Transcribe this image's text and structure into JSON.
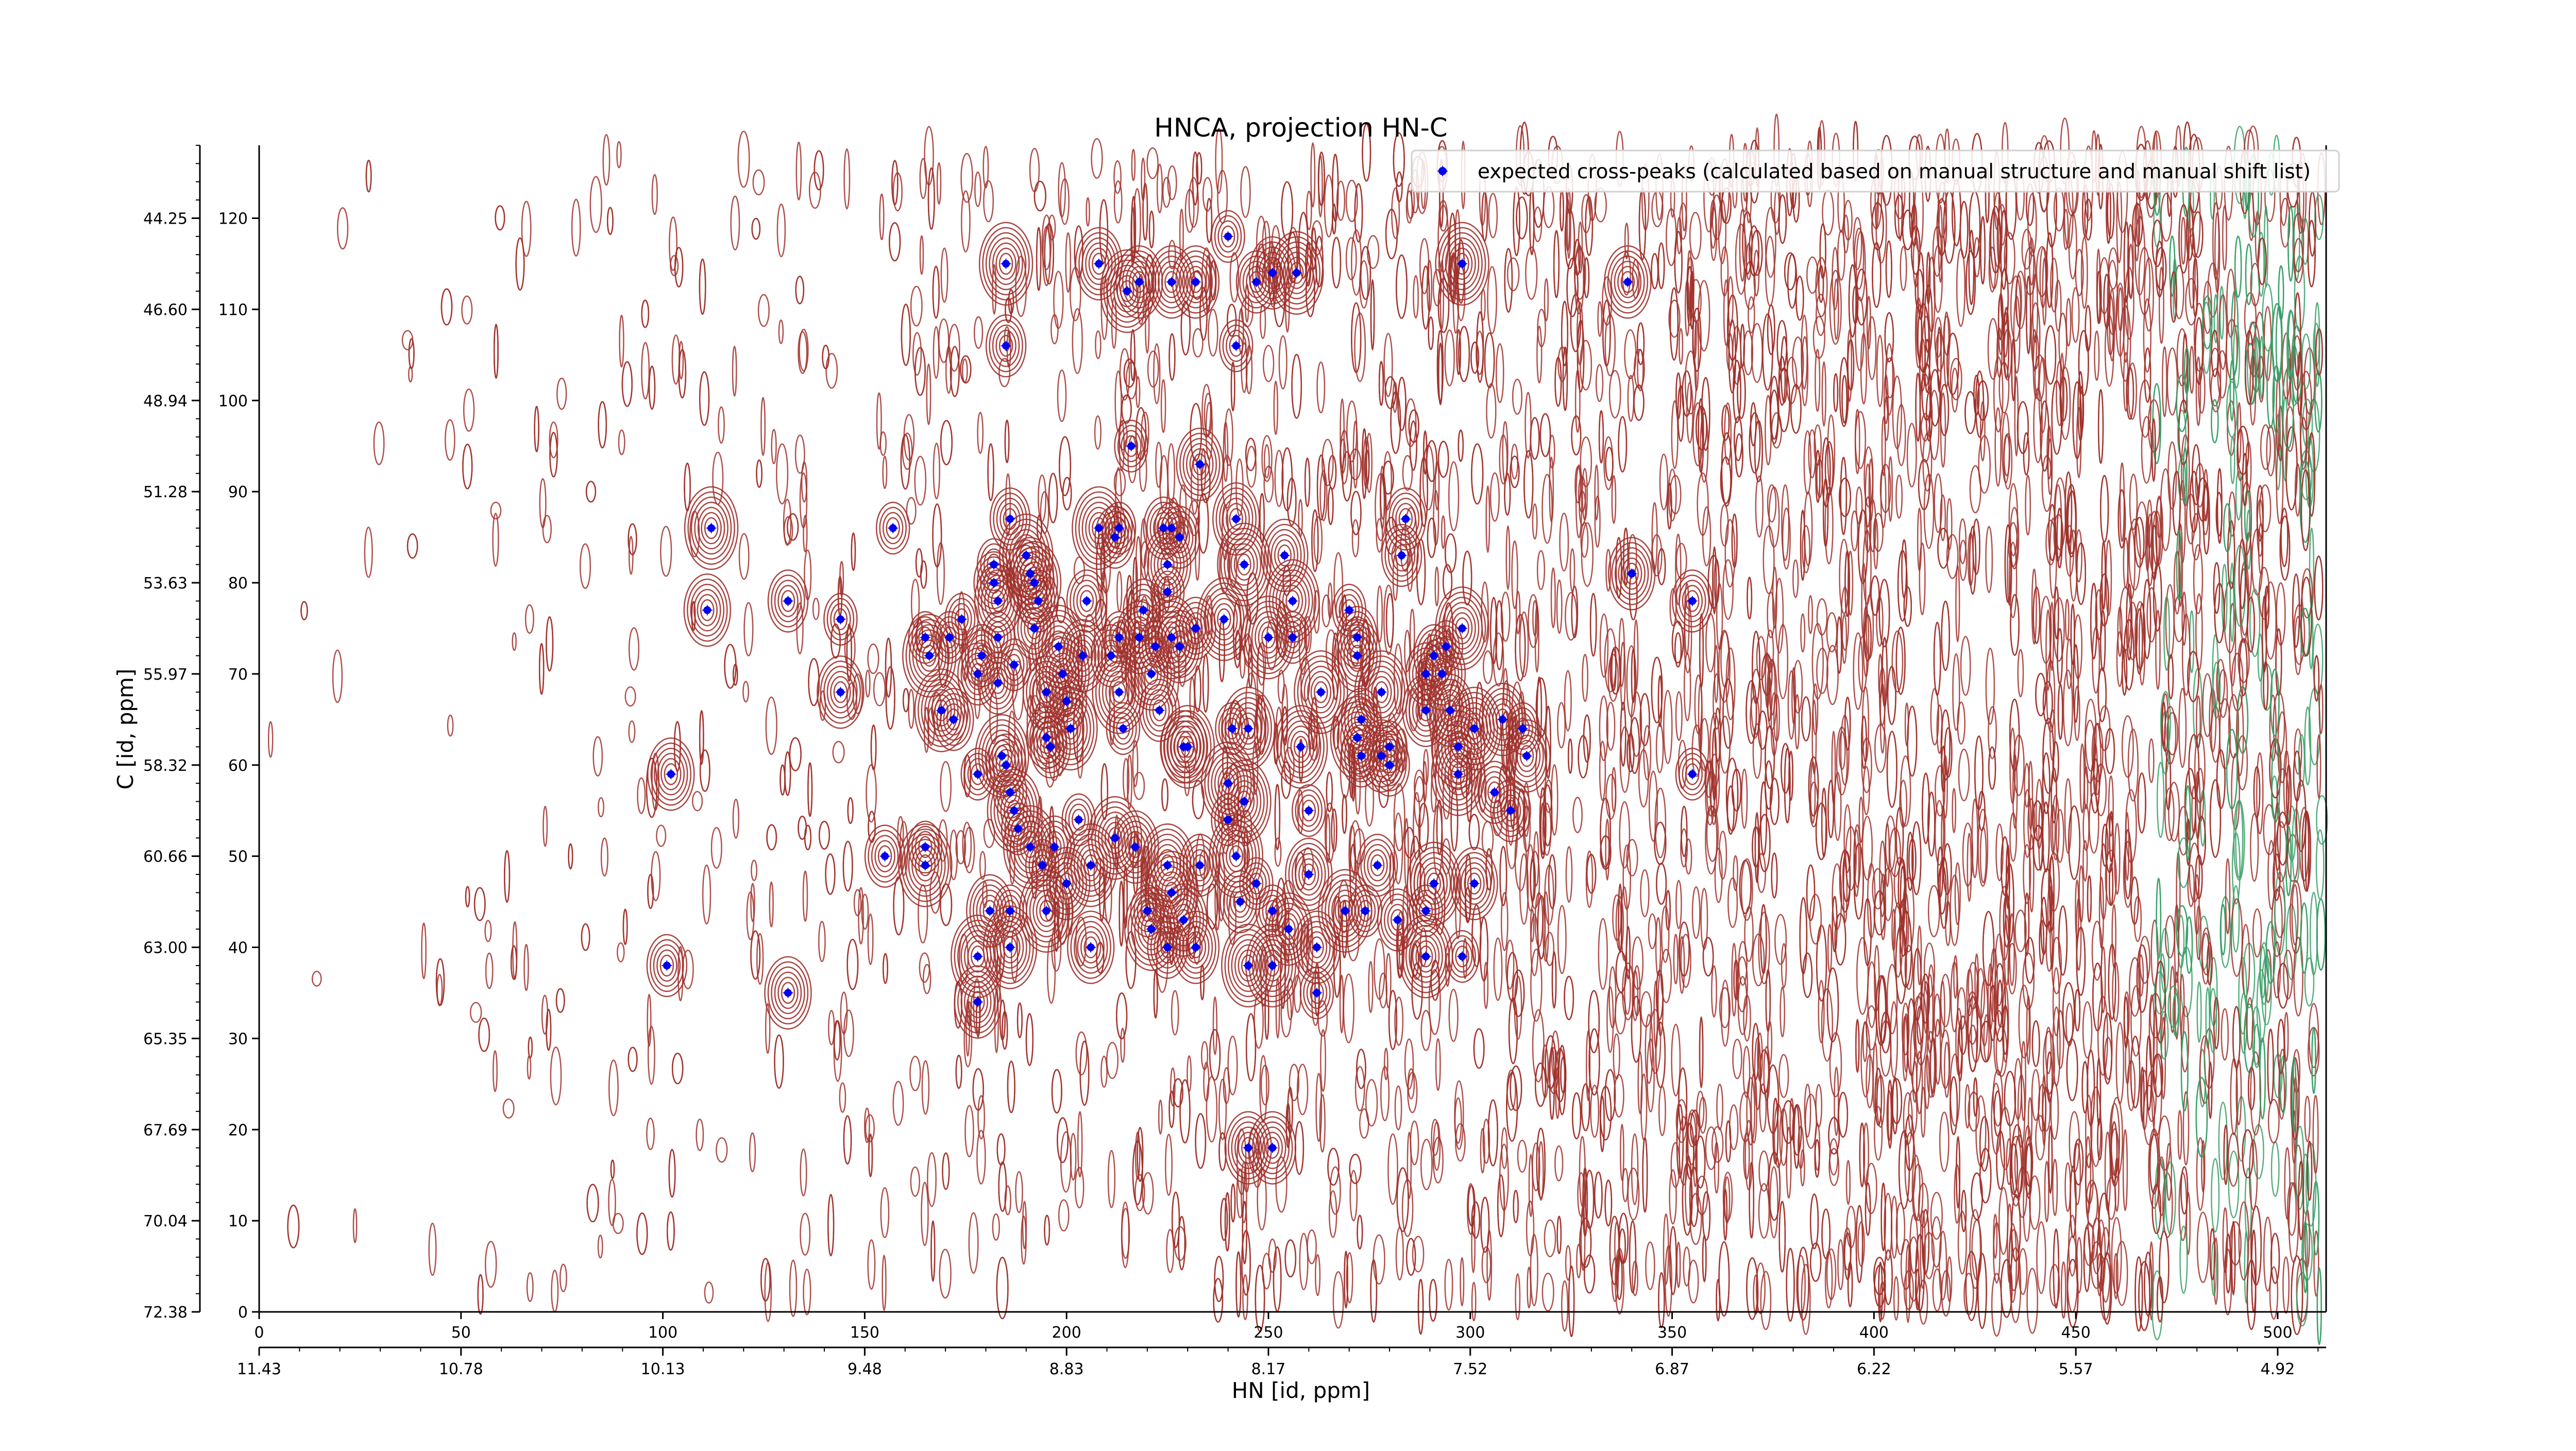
{
  "chart_data": {
    "type": "scatter",
    "title": "HNCA, projection HN-C",
    "xlabel": "HN [id, ppm]",
    "ylabel": "C [id, ppm]",
    "x_index_range": [
      0,
      512
    ],
    "y_index_range": [
      0,
      128
    ],
    "x_index_ticks": [
      "0",
      "50",
      "100",
      "150",
      "200",
      "250",
      "300",
      "350",
      "400",
      "450",
      "500"
    ],
    "x_ppm_ticks": [
      "11.43",
      "10.78",
      "10.13",
      "9.48",
      "8.83",
      "8.17",
      "7.52",
      "6.87",
      "6.22",
      "5.57",
      "4.92"
    ],
    "y_index_ticks": [
      "0",
      "10",
      "20",
      "30",
      "40",
      "50",
      "60",
      "70",
      "80",
      "90",
      "100",
      "110",
      "120"
    ],
    "y_ppm_ticks": [
      "72.38",
      "70.04",
      "67.69",
      "65.35",
      "63.00",
      "60.66",
      "58.32",
      "55.97",
      "53.63",
      "51.28",
      "48.94",
      "46.60",
      "44.25"
    ],
    "legend": {
      "position": "top-right",
      "label": "expected cross-peaks (calculated based on manual structure and manual shift list)"
    },
    "colors": {
      "peaks": "#0000ee",
      "contour_positive": "#a0312c",
      "contour_negative": "#3aa068"
    },
    "series": [
      {
        "name": "expected cross-peaks (calculated based on manual structure and manual shift list)",
        "points": [
          [
            102,
            59
          ],
          [
            112,
            86
          ],
          [
            111,
            77
          ],
          [
            131,
            78
          ],
          [
            144,
            76
          ],
          [
            144,
            68
          ],
          [
            157,
            86
          ],
          [
            155,
            50
          ],
          [
            165,
            51
          ],
          [
            165,
            49
          ],
          [
            165,
            74
          ],
          [
            166,
            72
          ],
          [
            169,
            66
          ],
          [
            171,
            74
          ],
          [
            172,
            65
          ],
          [
            174,
            76
          ],
          [
            178,
            59
          ],
          [
            178,
            70
          ],
          [
            179,
            72
          ],
          [
            182,
            80
          ],
          [
            182,
            82
          ],
          [
            183,
            78
          ],
          [
            183,
            74
          ],
          [
            183,
            69
          ],
          [
            184,
            61
          ],
          [
            186,
            87
          ],
          [
            187,
            71
          ],
          [
            190,
            83
          ],
          [
            191,
            81
          ],
          [
            192,
            80
          ],
          [
            193,
            78
          ],
          [
            192,
            75
          ],
          [
            195,
            68
          ],
          [
            195,
            63
          ],
          [
            196,
            62
          ],
          [
            197,
            51
          ],
          [
            198,
            73
          ],
          [
            199,
            70
          ],
          [
            200,
            67
          ],
          [
            201,
            64
          ],
          [
            203,
            54
          ],
          [
            204,
            72
          ],
          [
            205,
            78
          ],
          [
            208,
            86
          ],
          [
            211,
            72
          ],
          [
            212,
            85
          ],
          [
            213,
            86
          ],
          [
            213,
            74
          ],
          [
            213,
            68
          ],
          [
            214,
            64
          ],
          [
            216,
            95
          ],
          [
            218,
            74
          ],
          [
            219,
            77
          ],
          [
            221,
            70
          ],
          [
            222,
            73
          ],
          [
            223,
            66
          ],
          [
            224,
            86
          ],
          [
            225,
            82
          ],
          [
            225,
            79
          ],
          [
            226,
            86
          ],
          [
            226,
            74
          ],
          [
            228,
            85
          ],
          [
            228,
            73
          ],
          [
            229,
            62
          ],
          [
            230,
            62
          ],
          [
            232,
            75
          ],
          [
            233,
            93
          ],
          [
            239,
            76
          ],
          [
            240,
            54
          ],
          [
            240,
            58
          ],
          [
            241,
            64
          ],
          [
            244,
            56
          ],
          [
            242,
            87
          ],
          [
            244,
            82
          ],
          [
            245,
            64
          ],
          [
            250,
            74
          ],
          [
            254,
            83
          ],
          [
            256,
            78
          ],
          [
            256,
            74
          ],
          [
            258,
            62
          ],
          [
            260,
            55
          ],
          [
            260,
            48
          ],
          [
            263,
            68
          ],
          [
            270,
            77
          ],
          [
            272,
            72
          ],
          [
            272,
            74
          ],
          [
            272,
            63
          ],
          [
            273,
            65
          ],
          [
            273,
            61
          ],
          [
            278,
            68
          ],
          [
            278,
            61
          ],
          [
            280,
            60
          ],
          [
            280,
            62
          ],
          [
            283,
            83
          ],
          [
            284,
            87
          ],
          [
            289,
            70
          ],
          [
            289,
            66
          ],
          [
            291,
            72
          ],
          [
            293,
            70
          ],
          [
            294,
            73
          ],
          [
            295,
            66
          ],
          [
            298,
            75
          ],
          [
            297,
            62
          ],
          [
            297,
            59
          ],
          [
            301,
            64
          ],
          [
            306,
            57
          ],
          [
            308,
            65
          ],
          [
            310,
            55
          ],
          [
            313,
            64
          ],
          [
            314,
            61
          ],
          [
            355,
            59
          ],
          [
            355,
            78
          ],
          [
            340,
            81
          ],
          [
            185,
            115
          ],
          [
            185,
            106
          ],
          [
            208,
            115
          ],
          [
            215,
            112
          ],
          [
            218,
            113
          ],
          [
            226,
            113
          ],
          [
            232,
            113
          ],
          [
            240,
            118
          ],
          [
            242,
            106
          ],
          [
            247,
            113
          ],
          [
            251,
            114
          ],
          [
            257,
            114
          ],
          [
            298,
            115
          ],
          [
            339,
            113
          ],
          [
            185,
            60
          ],
          [
            186,
            57
          ],
          [
            187,
            55
          ],
          [
            188,
            53
          ],
          [
            191,
            51
          ],
          [
            194,
            49
          ],
          [
            200,
            47
          ],
          [
            206,
            49
          ],
          [
            212,
            52
          ],
          [
            225,
            49
          ],
          [
            226,
            46
          ],
          [
            229,
            43
          ],
          [
            233,
            49
          ],
          [
            242,
            50
          ],
          [
            247,
            47
          ],
          [
            251,
            44
          ],
          [
            255,
            42
          ],
          [
            262,
            40
          ],
          [
            269,
            44
          ],
          [
            274,
            44
          ],
          [
            277,
            49
          ],
          [
            282,
            43
          ],
          [
            289,
            44
          ],
          [
            291,
            47
          ],
          [
            301,
            47
          ],
          [
            289,
            39
          ],
          [
            298,
            39
          ],
          [
            232,
            40
          ],
          [
            186,
            44
          ],
          [
            186,
            40
          ],
          [
            195,
            44
          ],
          [
            206,
            40
          ],
          [
            220,
            44
          ],
          [
            225,
            40
          ],
          [
            243,
            45
          ],
          [
            251,
            38
          ],
          [
            245,
            38
          ],
          [
            221,
            42
          ],
          [
            217,
            51
          ],
          [
            181,
            44
          ],
          [
            178,
            39
          ],
          [
            178,
            34
          ],
          [
            101,
            38
          ],
          [
            131,
            35
          ],
          [
            262,
            35
          ],
          [
            245,
            18
          ],
          [
            251,
            18
          ]
        ]
      }
    ]
  }
}
